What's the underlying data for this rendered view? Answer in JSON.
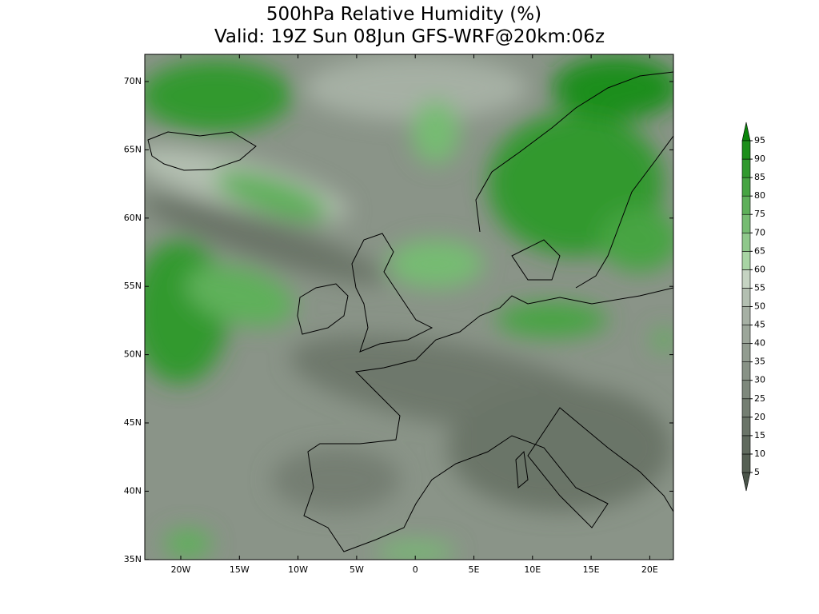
{
  "title": "500hPa Relative Humidity (%)",
  "subtitle": "Valid: 19Z Sun 08Jun GFS-WRF@20km:06z",
  "lat_labels": [
    "70N",
    "65N",
    "60N",
    "55N",
    "50N",
    "45N",
    "40N",
    "35N"
  ],
  "lon_labels": [
    "20W",
    "15W",
    "10W",
    "5W",
    "0",
    "5E",
    "10E",
    "15E",
    "20E"
  ],
  "colorbar": {
    "levels": [
      5,
      10,
      15,
      20,
      25,
      30,
      35,
      40,
      45,
      50,
      55,
      60,
      65,
      70,
      75,
      80,
      85,
      90,
      95
    ],
    "colors": [
      "#4a5449",
      "#566054",
      "#606a5e",
      "#6a7468",
      "#747e72",
      "#7e887c",
      "#889286",
      "#929c90",
      "#9ca69a",
      "#a6b0a4",
      "#b3bfb1",
      "#c5d3c2",
      "#a8d4a4",
      "#8fc88b",
      "#76bc72",
      "#5eb05a",
      "#46a442",
      "#30992d",
      "#1c8e1a",
      "#0a850a"
    ]
  }
}
